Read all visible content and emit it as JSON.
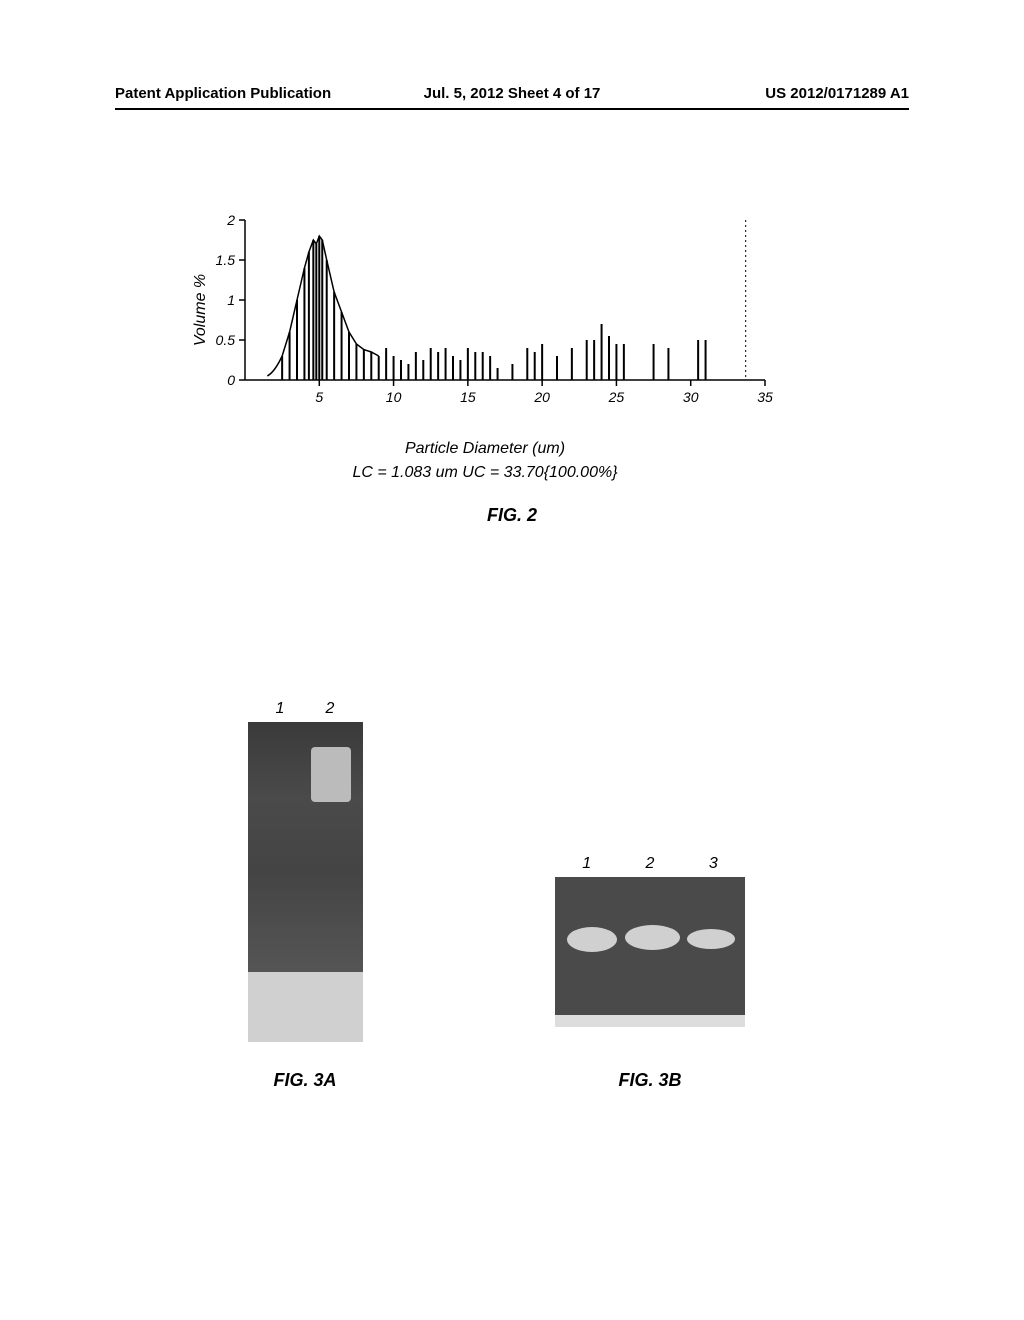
{
  "header": {
    "left": "Patent Application Publication",
    "center": "Jul. 5, 2012  Sheet 4 of 17",
    "right": "US 2012/0171289 A1"
  },
  "chart": {
    "type": "bar-line",
    "ylabel": "Volume %",
    "xlabel": "Particle Diameter (um)",
    "subtitle": "LC = 1.083 um UC = 33.70{100.00%}",
    "ylim": [
      0,
      2
    ],
    "xlim": [
      0,
      35
    ],
    "yticks": [
      0,
      0.5,
      1,
      1.5,
      2
    ],
    "xticks": [
      5,
      10,
      15,
      20,
      25,
      30,
      35
    ],
    "tick_fontsize": 14,
    "label_fontsize": 16,
    "line_color": "#000000",
    "bar_color": "#000000",
    "background_color": "#ffffff",
    "bars": [
      {
        "x": 2.5,
        "h": 0.3
      },
      {
        "x": 3.0,
        "h": 0.6
      },
      {
        "x": 3.5,
        "h": 1.0
      },
      {
        "x": 4.0,
        "h": 1.4
      },
      {
        "x": 4.3,
        "h": 1.6
      },
      {
        "x": 4.6,
        "h": 1.75
      },
      {
        "x": 4.8,
        "h": 1.7
      },
      {
        "x": 5.0,
        "h": 1.8
      },
      {
        "x": 5.2,
        "h": 1.75
      },
      {
        "x": 5.5,
        "h": 1.5
      },
      {
        "x": 6.0,
        "h": 1.1
      },
      {
        "x": 6.5,
        "h": 0.85
      },
      {
        "x": 7.0,
        "h": 0.6
      },
      {
        "x": 7.5,
        "h": 0.45
      },
      {
        "x": 8.0,
        "h": 0.38
      },
      {
        "x": 8.5,
        "h": 0.35
      },
      {
        "x": 9.0,
        "h": 0.3
      },
      {
        "x": 9.5,
        "h": 0.4
      },
      {
        "x": 10.0,
        "h": 0.3
      },
      {
        "x": 10.5,
        "h": 0.25
      },
      {
        "x": 11.0,
        "h": 0.2
      },
      {
        "x": 11.5,
        "h": 0.35
      },
      {
        "x": 12.0,
        "h": 0.25
      },
      {
        "x": 12.5,
        "h": 0.4
      },
      {
        "x": 13.0,
        "h": 0.35
      },
      {
        "x": 13.5,
        "h": 0.4
      },
      {
        "x": 14.0,
        "h": 0.3
      },
      {
        "x": 14.5,
        "h": 0.25
      },
      {
        "x": 15.0,
        "h": 0.4
      },
      {
        "x": 15.5,
        "h": 0.35
      },
      {
        "x": 16.0,
        "h": 0.35
      },
      {
        "x": 16.5,
        "h": 0.3
      },
      {
        "x": 17.0,
        "h": 0.15
      },
      {
        "x": 18.0,
        "h": 0.2
      },
      {
        "x": 19.0,
        "h": 0.4
      },
      {
        "x": 19.5,
        "h": 0.35
      },
      {
        "x": 20.0,
        "h": 0.45
      },
      {
        "x": 21.0,
        "h": 0.3
      },
      {
        "x": 22.0,
        "h": 0.4
      },
      {
        "x": 23.0,
        "h": 0.5
      },
      {
        "x": 23.5,
        "h": 0.5
      },
      {
        "x": 24.0,
        "h": 0.7
      },
      {
        "x": 24.5,
        "h": 0.55
      },
      {
        "x": 25.0,
        "h": 0.45
      },
      {
        "x": 25.5,
        "h": 0.45
      },
      {
        "x": 27.5,
        "h": 0.45
      },
      {
        "x": 28.5,
        "h": 0.4
      },
      {
        "x": 30.5,
        "h": 0.5
      },
      {
        "x": 31.0,
        "h": 0.5
      }
    ]
  },
  "figures": {
    "fig2": "FIG. 2",
    "fig3a": "FIG. 3A",
    "fig3b": "FIG. 3B"
  },
  "gel_a": {
    "lanes": [
      "1",
      "2"
    ]
  },
  "gel_b": {
    "lanes": [
      "1",
      "2",
      "3"
    ]
  }
}
